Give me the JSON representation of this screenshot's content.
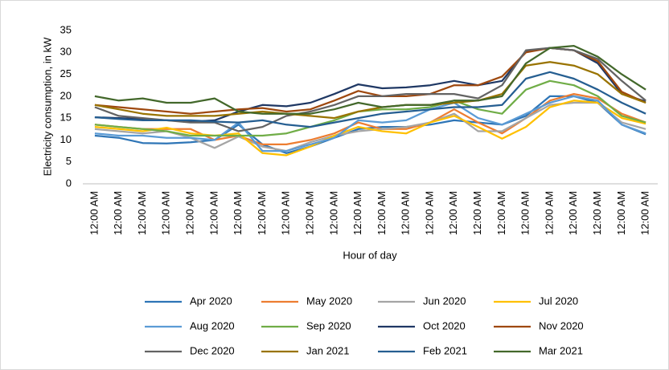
{
  "chart_data": {
    "type": "line",
    "y_label": "Electricity consumption, in kW",
    "x_label": "Hour of day",
    "categories": [
      "12:00 AM",
      "12:00 AM",
      "12:00 AM",
      "12:00 AM",
      "12:00 AM",
      "12:00 AM",
      "12:00 AM",
      "12:00 AM",
      "12:00 AM",
      "12:00 AM",
      "12:00 AM",
      "12:00 AM",
      "12:00 AM",
      "12:00 AM",
      "12:00 AM",
      "12:00 AM",
      "12:00 AM",
      "12:00 AM",
      "12:00 AM",
      "12:00 AM",
      "12:00 AM",
      "12:00 AM",
      "12:00 AM",
      "12:00 AM"
    ],
    "ylim": [
      0,
      35
    ],
    "yticks": [
      0,
      5,
      10,
      15,
      20,
      25,
      30,
      35
    ],
    "series": [
      {
        "name": "Apr 2020",
        "color": "#2e75b6",
        "values": [
          11,
          10.5,
          9.3,
          9.2,
          9.5,
          10,
          13.5,
          9,
          7,
          8.5,
          10.5,
          12.5,
          13,
          13,
          13.5,
          14.5,
          14,
          13.5,
          15.5,
          20,
          20,
          18.5,
          13.5,
          11.3
        ]
      },
      {
        "name": "May 2020",
        "color": "#ed7d31",
        "values": [
          13.5,
          13,
          12.5,
          12.5,
          12.5,
          10,
          11,
          9,
          9,
          10,
          11.5,
          14,
          12.5,
          12.5,
          14,
          17,
          14,
          11.5,
          15,
          19,
          20.5,
          19.5,
          16,
          14
        ]
      },
      {
        "name": "Jun 2020",
        "color": "#a5a5a5",
        "values": [
          12.5,
          12,
          11.5,
          12,
          10.5,
          8.2,
          10.8,
          8.5,
          7.5,
          9.5,
          11,
          12,
          12.5,
          13,
          14,
          16,
          12,
          12,
          15,
          18,
          18.5,
          18.5,
          14,
          12.5
        ]
      },
      {
        "name": "Jul 2020",
        "color": "#ffc000",
        "values": [
          13,
          12.5,
          12,
          12.8,
          11.5,
          11,
          11.5,
          7,
          6.5,
          8.5,
          11,
          13,
          12,
          11.5,
          14,
          15.5,
          13,
          10.3,
          13,
          17.5,
          19,
          18.5,
          15,
          13.7
        ]
      },
      {
        "name": "Aug 2020",
        "color": "#5b9bd5",
        "values": [
          11.5,
          11,
          11,
          10.5,
          10.5,
          10,
          14,
          7.5,
          7.5,
          9,
          10.5,
          14.5,
          14,
          14.5,
          17,
          18.5,
          15,
          13.5,
          16,
          18.5,
          20,
          19,
          13.5,
          11.5
        ]
      },
      {
        "name": "Sep 2020",
        "color": "#70ad47",
        "values": [
          13.5,
          13,
          12.5,
          12,
          11,
          11,
          11,
          11,
          11.5,
          13,
          14.5,
          16.5,
          17,
          17,
          17.5,
          19,
          17,
          16,
          21.5,
          23.5,
          22.5,
          20,
          15.5,
          14
        ]
      },
      {
        "name": "Oct 2020",
        "color": "#1f3864",
        "values": [
          15.2,
          15,
          14.8,
          14.5,
          14.2,
          14.5,
          16.5,
          18,
          17.7,
          18.5,
          20.5,
          22.7,
          21.8,
          22,
          22.5,
          23.5,
          22.5,
          23.5,
          30.3,
          31,
          30.5,
          27.5,
          20.5,
          18.8
        ]
      },
      {
        "name": "Nov 2020",
        "color": "#9e480e",
        "values": [
          18,
          17.5,
          17,
          16.5,
          16,
          16.5,
          17,
          17.3,
          16.5,
          17,
          19,
          21.2,
          20,
          20,
          20.5,
          22.5,
          22.5,
          24.5,
          30,
          31,
          30.5,
          28,
          21,
          18.5
        ]
      },
      {
        "name": "Dec 2020",
        "color": "#636363",
        "values": [
          17.5,
          15.5,
          15,
          14.5,
          14,
          14,
          12,
          13,
          15.5,
          16.5,
          18,
          20,
          20,
          20.5,
          20.5,
          20.5,
          19.5,
          22.5,
          30.5,
          31,
          30.5,
          28.5,
          23.5,
          19
        ]
      },
      {
        "name": "Jan 2021",
        "color": "#997300",
        "values": [
          18,
          17,
          16,
          15.5,
          15.5,
          15.5,
          16,
          16.5,
          16,
          15.5,
          15,
          16.5,
          17.5,
          18,
          18,
          18.5,
          19,
          20.5,
          27,
          27.8,
          27,
          25,
          20.5,
          18.5
        ]
      },
      {
        "name": "Feb 2021",
        "color": "#255e91",
        "values": [
          15.2,
          14.8,
          14.5,
          14.5,
          14.5,
          14.2,
          14,
          14.5,
          13.5,
          13,
          14,
          15,
          16,
          16.5,
          17,
          17.5,
          17.5,
          18,
          24,
          25.5,
          24,
          21.5,
          18.5,
          16
        ]
      },
      {
        "name": "Mar 2021",
        "color": "#43682b",
        "values": [
          20,
          19,
          19.5,
          18.5,
          18.5,
          19.5,
          16.5,
          16,
          16,
          16,
          17,
          18.5,
          17.5,
          18,
          18,
          19,
          19,
          20,
          27.5,
          31,
          31.5,
          29,
          25,
          21.5
        ]
      }
    ]
  }
}
